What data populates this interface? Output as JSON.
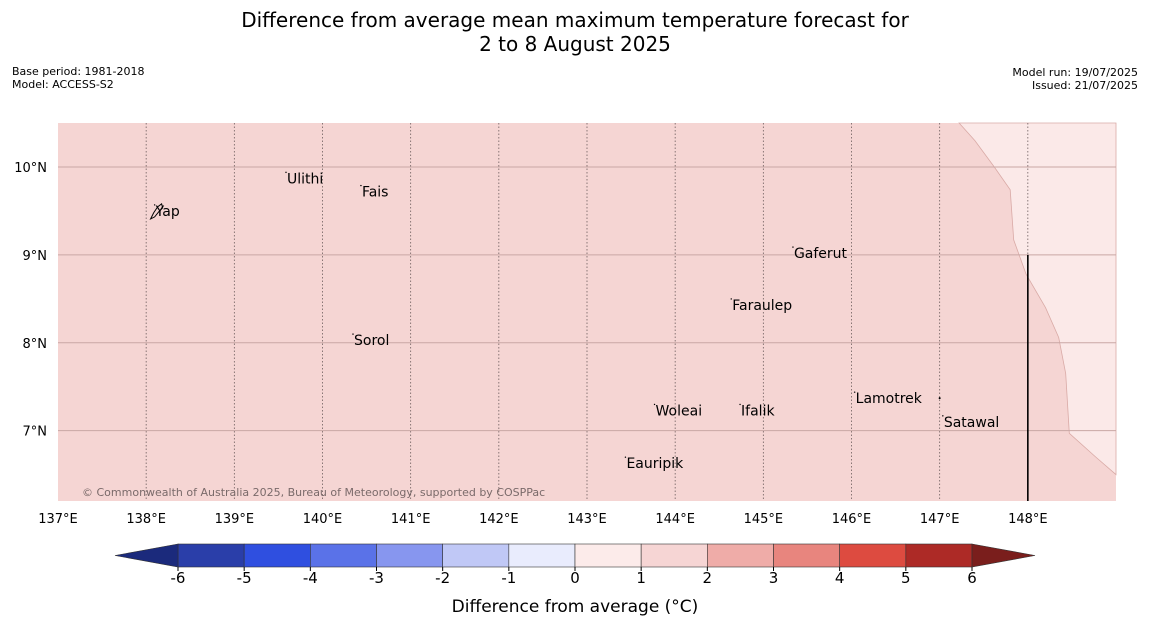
{
  "title_line1": "Difference from average mean maximum temperature forecast for",
  "title_line2": "2 to 8 August 2025",
  "meta_left": {
    "base_period": "Base period: 1981-2018",
    "model": "Model: ACCESS-S2"
  },
  "meta_right": {
    "model_run": "Model run: 19/07/2025",
    "issued": "Issued: 21/07/2025"
  },
  "map": {
    "lon_range": [
      137,
      149
    ],
    "lat_range": [
      6.2,
      10.5
    ],
    "lon_ticks": [
      137,
      138,
      139,
      140,
      141,
      142,
      143,
      144,
      145,
      146,
      147,
      148
    ],
    "lon_tick_labels": [
      "137°E",
      "138°E",
      "139°E",
      "140°E",
      "141°E",
      "142°E",
      "143°E",
      "144°E",
      "145°E",
      "146°E",
      "147°E",
      "148°E"
    ],
    "lat_ticks": [
      7,
      8,
      9,
      10
    ],
    "lat_tick_labels": [
      "7°N",
      "8°N",
      "9°N",
      "10°N"
    ],
    "fill_colors": {
      "anomaly_1_to_2": "#f5d5d3",
      "anomaly_0_to_1": "#fbe9e8",
      "grid": "#c9a7a5"
    },
    "places": [
      {
        "name": "Ulithi",
        "lon": 139.62,
        "lat": 9.87
      },
      {
        "name": "Fais",
        "lon": 140.47,
        "lat": 9.72
      },
      {
        "name": "Yap",
        "lon": 138.13,
        "lat": 9.5
      },
      {
        "name": "Gaferut",
        "lon": 145.37,
        "lat": 9.02
      },
      {
        "name": "Faraulep",
        "lon": 144.67,
        "lat": 8.43
      },
      {
        "name": "Sorol",
        "lon": 140.38,
        "lat": 8.03
      },
      {
        "name": "Lamotrek",
        "lon": 146.07,
        "lat": 7.37
      },
      {
        "name": "Woleai",
        "lon": 143.8,
        "lat": 7.23
      },
      {
        "name": "Ifalik",
        "lon": 144.77,
        "lat": 7.23
      },
      {
        "name": "Satawal",
        "lon": 147.07,
        "lat": 7.1
      },
      {
        "name": "Eauripik",
        "lon": 143.47,
        "lat": 6.63
      }
    ],
    "copyright": "© Commonwealth of Australia 2025, Bureau of Meteorology, supported by COSPPac"
  },
  "colorbar": {
    "ticks": [
      "-6",
      "-5",
      "-4",
      "-3",
      "-2",
      "-1",
      "0",
      "1",
      "2",
      "3",
      "4",
      "5",
      "6"
    ],
    "colors": [
      "#2a3ea9",
      "#2f4fe0",
      "#5a72e8",
      "#8796ef",
      "#c0c8f6",
      "#e9ecfd",
      "#fcebea",
      "#f6d5d4",
      "#efaca8",
      "#e8857e",
      "#dd4b40",
      "#ad2a26"
    ],
    "under_color": "#1b2a7c",
    "over_color": "#7a1e1c",
    "title": "Difference from average (°C)"
  }
}
